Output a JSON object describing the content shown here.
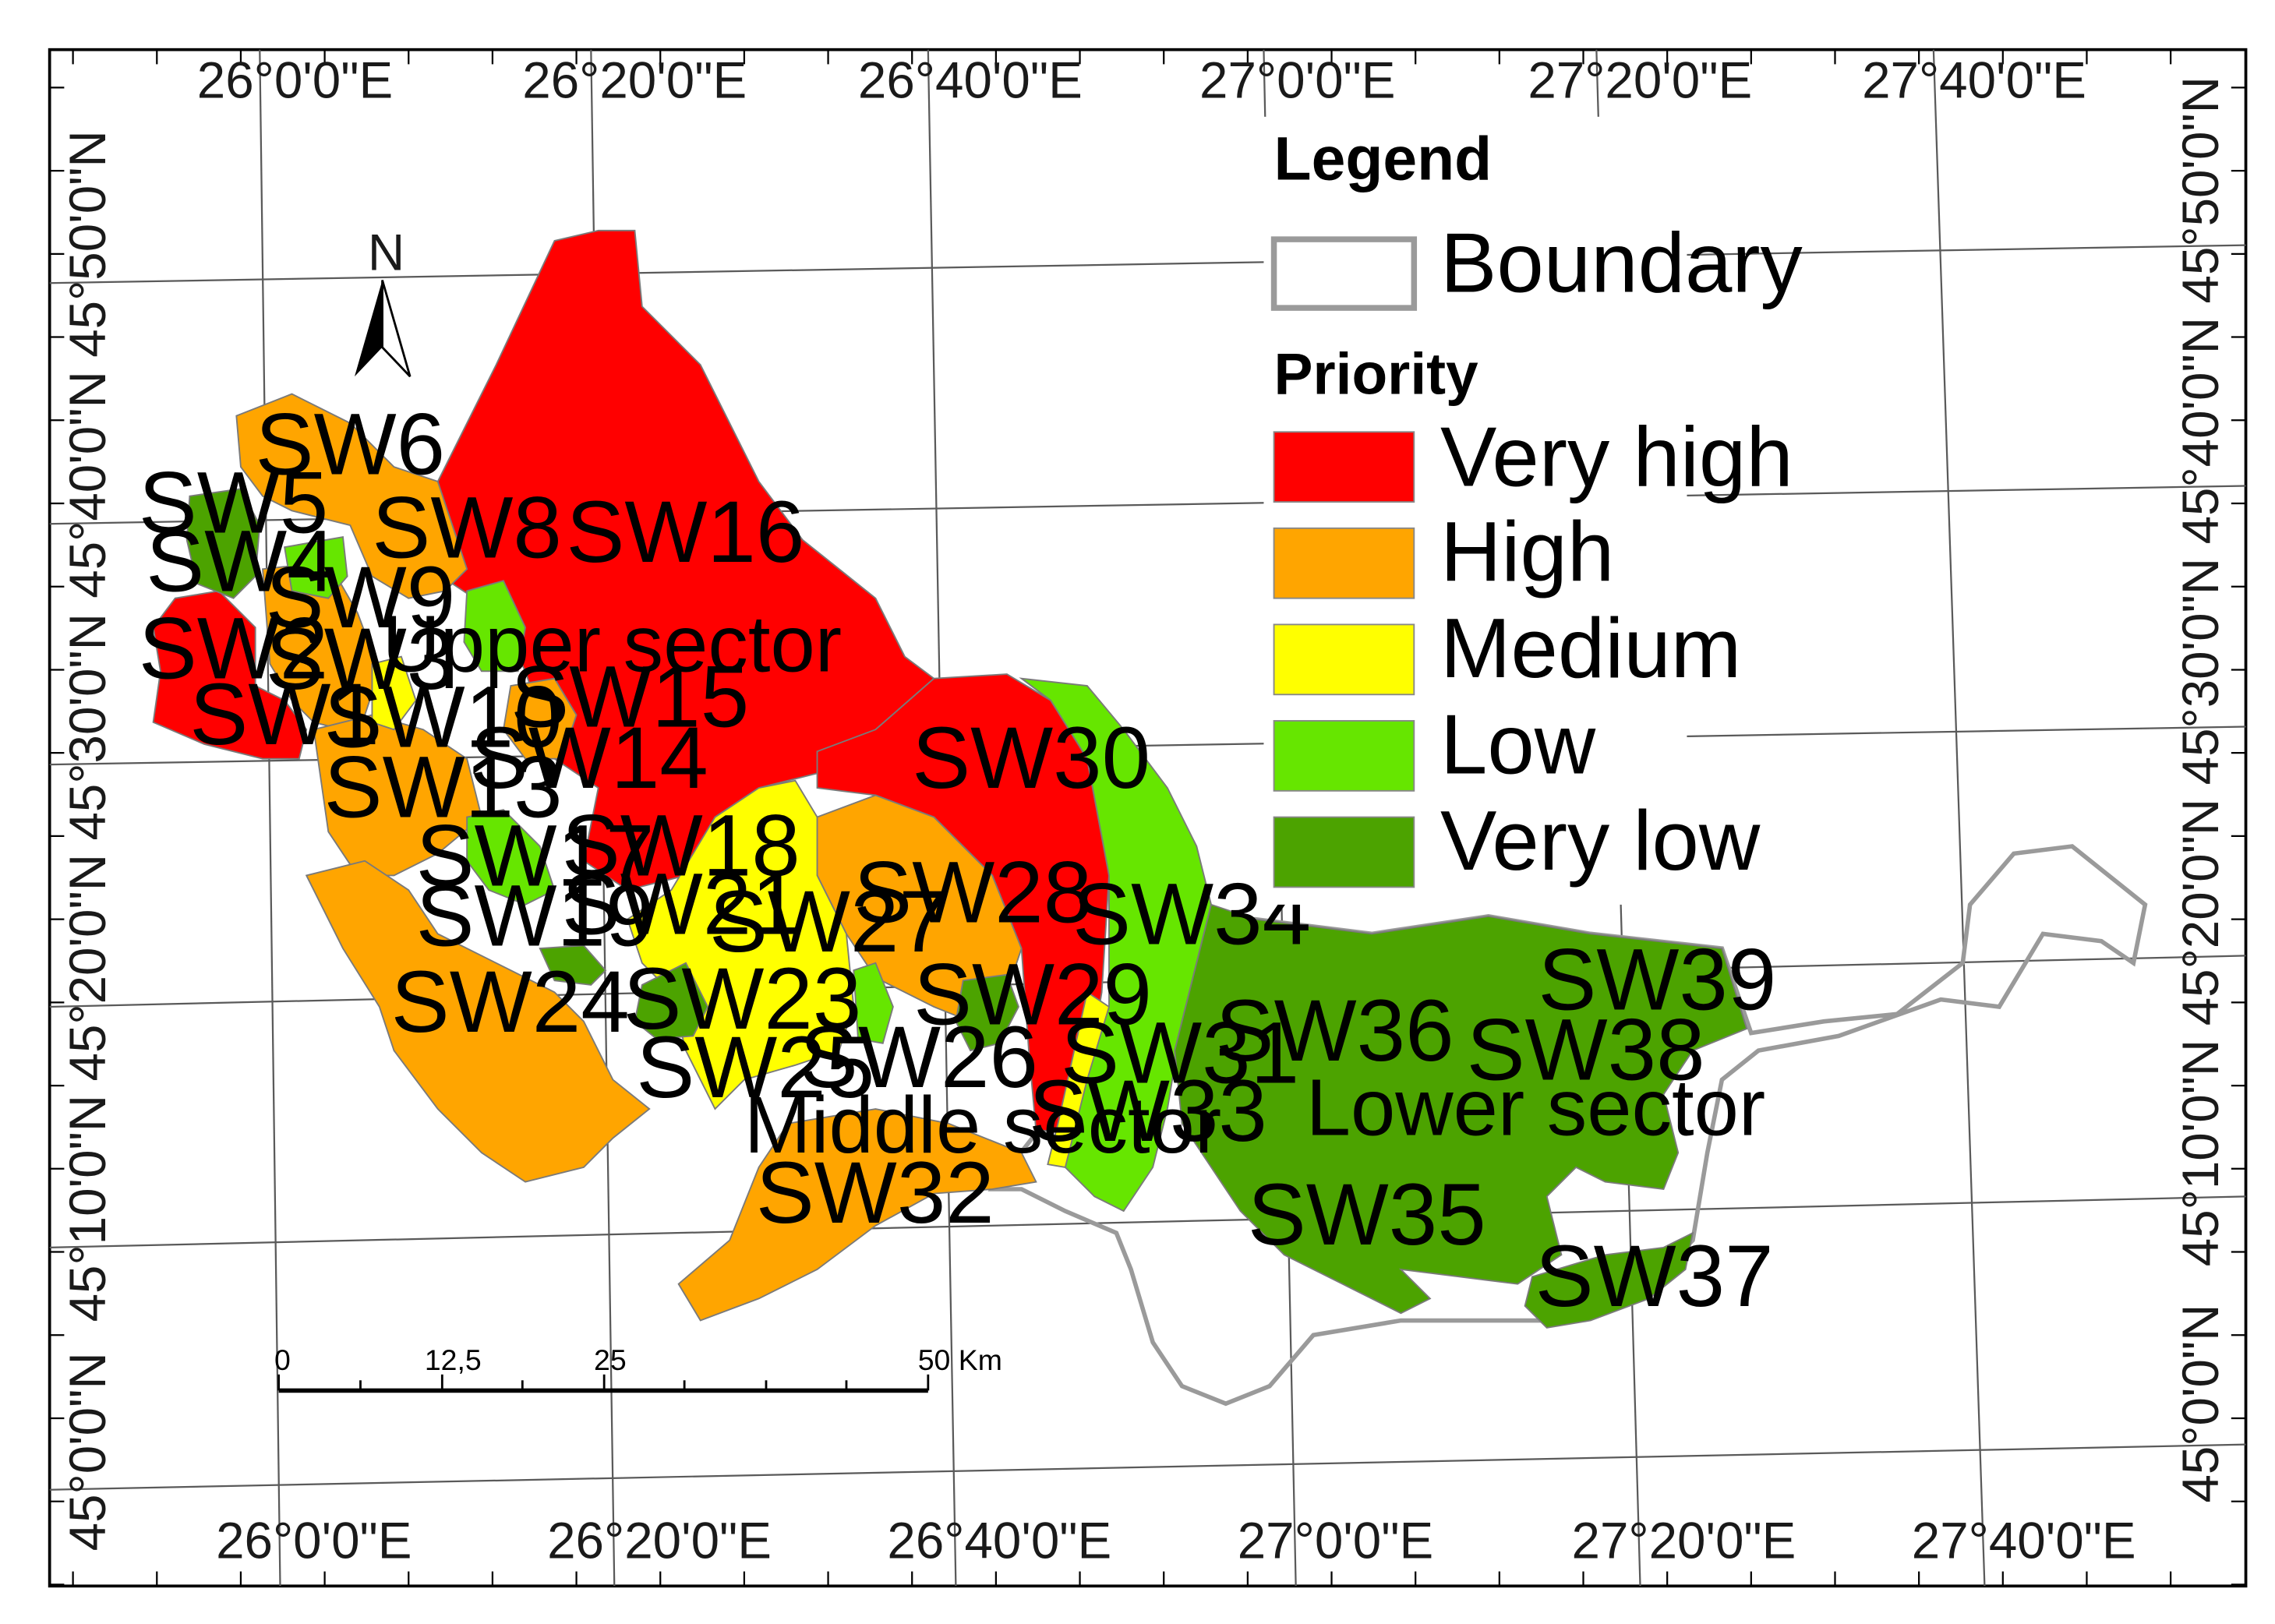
{
  "map": {
    "longitude_labels_top": [
      "26°0'0\"E",
      "26°20'0\"E",
      "26°40'0\"E",
      "27°0'0\"E",
      "27°20'0\"E",
      "27°40'0\"E"
    ],
    "longitude_labels_bottom": [
      "26°0'0\"E",
      "26°20'0\"E",
      "26°40'0\"E",
      "27°0'0\"E",
      "27°20'0\"E",
      "27°40'0\"E"
    ],
    "latitude_labels_left": [
      "45°50'0\"N",
      "45°40'0\"N",
      "45°30'0\"N",
      "45°20'0\"N",
      "45°10'0\"N",
      "45°0'0\"N"
    ],
    "latitude_labels_right": [
      "45°50'0\"N",
      "45°40'0\"N",
      "45°30'0\"N",
      "45°20'0\"N",
      "45°10'0\"N",
      "45°0'0\"N"
    ],
    "north_arrow_label": "N",
    "scale_bar": {
      "labels": [
        "0",
        "12,5",
        "25",
        "50 Km"
      ]
    },
    "sectors": {
      "upper": "Upper sector",
      "middle": "Middle sector",
      "lower": "Lower sector"
    },
    "subwatersheds": [
      {
        "id": "SW1",
        "priority": "Very high"
      },
      {
        "id": "SW2",
        "priority": "Very high"
      },
      {
        "id": "SW3",
        "priority": "High"
      },
      {
        "id": "SW4",
        "priority": "Very low"
      },
      {
        "id": "SW5",
        "priority": "Very low"
      },
      {
        "id": "SW6",
        "priority": "High"
      },
      {
        "id": "SW8",
        "priority": "High"
      },
      {
        "id": "SW9",
        "priority": "Low"
      },
      {
        "id": "SW10",
        "priority": "High"
      },
      {
        "id": "SW13",
        "priority": "High"
      },
      {
        "id": "SW14",
        "priority": "High"
      },
      {
        "id": "SW15",
        "priority": "High"
      },
      {
        "id": "SW16",
        "priority": "Very high"
      },
      {
        "id": "SW17",
        "priority": "Low"
      },
      {
        "id": "SW18",
        "priority": "Very high"
      },
      {
        "id": "SW19",
        "priority": "High"
      },
      {
        "id": "SW21",
        "priority": "Medium"
      },
      {
        "id": "SW23",
        "priority": "Very low"
      },
      {
        "id": "SW24",
        "priority": "High"
      },
      {
        "id": "SW25",
        "priority": "Medium"
      },
      {
        "id": "SW26",
        "priority": "Medium"
      },
      {
        "id": "SW27",
        "priority": "Medium"
      },
      {
        "id": "SW28",
        "priority": "High"
      },
      {
        "id": "SW29",
        "priority": "Very low"
      },
      {
        "id": "SW30",
        "priority": "Very high"
      },
      {
        "id": "SW31",
        "priority": "Medium"
      },
      {
        "id": "SW32",
        "priority": "High"
      },
      {
        "id": "SW33",
        "priority": "Low"
      },
      {
        "id": "SW34",
        "priority": "Low"
      },
      {
        "id": "SW35",
        "priority": "Very low"
      },
      {
        "id": "SW36",
        "priority": "Very low"
      },
      {
        "id": "SW37",
        "priority": "Very low"
      },
      {
        "id": "SW38",
        "priority": "Very low"
      },
      {
        "id": "SW39",
        "priority": "Very low"
      }
    ]
  },
  "legend": {
    "title": "Legend",
    "boundary_label": "Boundary",
    "priority_title": "Priority",
    "classes": [
      {
        "label": "Very high",
        "color": "#ff0000"
      },
      {
        "label": "High",
        "color": "#ffa500"
      },
      {
        "label": "Medium",
        "color": "#ffff00"
      },
      {
        "label": "Low",
        "color": "#66e600"
      },
      {
        "label": "Very low",
        "color": "#4ca300"
      }
    ],
    "boundary_color": "#9a9a9a"
  }
}
